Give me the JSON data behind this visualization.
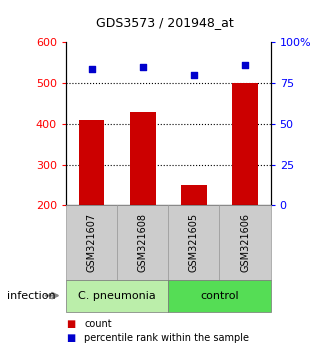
{
  "title": "GDS3573 / 201948_at",
  "samples": [
    "GSM321607",
    "GSM321608",
    "GSM321605",
    "GSM321606"
  ],
  "bar_values": [
    410,
    430,
    250,
    500
  ],
  "percentile_values": [
    84,
    85,
    80,
    86
  ],
  "bar_color": "#cc0000",
  "dot_color": "#0000cc",
  "ylim_left": [
    200,
    600
  ],
  "ylim_right": [
    0,
    100
  ],
  "yticks_left": [
    200,
    300,
    400,
    500,
    600
  ],
  "yticks_right": [
    0,
    25,
    50,
    75,
    100
  ],
  "ytick_labels_right": [
    "0",
    "25",
    "50",
    "75",
    "100%"
  ],
  "groups": [
    {
      "label": "C. pneumonia",
      "color": "#bbeeaa",
      "n_samples": 2
    },
    {
      "label": "control",
      "color": "#55dd55",
      "n_samples": 2
    }
  ],
  "infection_label": "infection",
  "legend": [
    {
      "color": "#cc0000",
      "label": "count"
    },
    {
      "color": "#0000cc",
      "label": "percentile rank within the sample"
    }
  ],
  "background_color": "#ffffff",
  "plot_bg_color": "#ffffff",
  "xlabel_box_color": "#cccccc",
  "gridline_ticks": [
    300,
    400,
    500
  ],
  "bar_width": 0.5
}
